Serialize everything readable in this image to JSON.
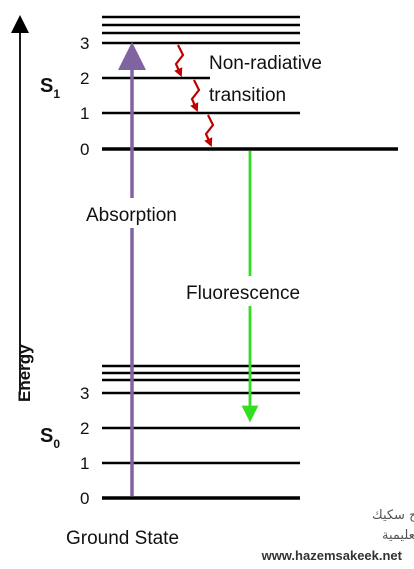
{
  "energy_axis_label": "Energy",
  "s1": {
    "symbol": "S",
    "subscript": "1",
    "levels": [
      "3",
      "2",
      "1",
      "0"
    ]
  },
  "s0": {
    "symbol": "S",
    "subscript": "0",
    "levels": [
      "3",
      "2",
      "1",
      "0"
    ]
  },
  "labels": {
    "non_radiative_line1": "Non-radiative",
    "non_radiative_line2": "transition",
    "absorption": "Absorption",
    "fluorescence": "Fluorescence",
    "ground_state": "Ground State"
  },
  "watermark": {
    "line1": "د. حازم فلاح سكيك",
    "line2": "شبكة الفيزياء التعليمية",
    "url": "www.hazemsakeek.net"
  },
  "colors": {
    "absorption_arrow": "#8064a2",
    "fluorescence_arrow": "#33dd22",
    "non_radiative_arrow": "#c00000",
    "level_lines": "#000000"
  }
}
